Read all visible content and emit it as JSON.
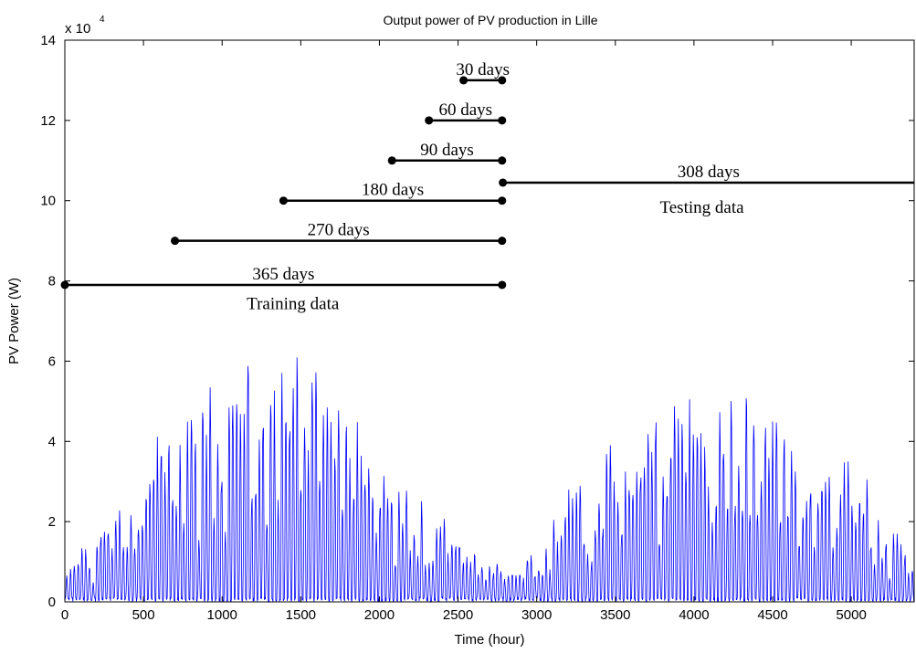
{
  "chart_data": {
    "type": "line",
    "title": "Output power of PV production in Lille",
    "xlabel": "Time (hour)",
    "ylabel": "PV Power (W)",
    "y_multiplier_label": "x 10",
    "y_multiplier_exponent": "4",
    "xlim": [
      0,
      5400
    ],
    "ylim": [
      0,
      140000
    ],
    "x_ticks": [
      0,
      500,
      1000,
      1500,
      2000,
      2500,
      3000,
      3500,
      4000,
      4500,
      5000
    ],
    "y_ticks": [
      0,
      2,
      4,
      6,
      8,
      10,
      12,
      14
    ],
    "y_tick_scale": 10000,
    "grid": false,
    "series_color": "#0000ff",
    "series": [
      {
        "envelope_peak_hours": [
          0,
          250,
          500,
          750,
          1000,
          1150,
          1250,
          1500,
          1750,
          2000,
          2250,
          2450,
          2650,
          2800,
          3000,
          3250,
          3500,
          3750,
          3950,
          4250,
          4500,
          4750,
          5000,
          5200,
          5400
        ],
        "envelope_peak_watts": [
          8000,
          22000,
          38000,
          52000,
          62000,
          68000,
          65000,
          66000,
          58000,
          47000,
          32000,
          20000,
          13000,
          10000,
          16000,
          32000,
          46000,
          56000,
          63000,
          60000,
          55000,
          46000,
          37000,
          25000,
          15000
        ]
      }
    ],
    "intervals": [
      {
        "label": "30 days",
        "start": 2535,
        "end": 2780,
        "y": 130000
      },
      {
        "label": "60 days",
        "start": 2315,
        "end": 2780,
        "y": 120000
      },
      {
        "label": "90 days",
        "start": 2080,
        "end": 2780,
        "y": 110000
      },
      {
        "label": "180 days",
        "start": 1390,
        "end": 2780,
        "y": 100000
      },
      {
        "label": "270 days",
        "start": 700,
        "end": 2780,
        "y": 90000
      },
      {
        "label": "365 days",
        "start": 0,
        "end": 2780,
        "y": 79000
      },
      {
        "label": "308 days",
        "start": 2785,
        "end": 5400,
        "y": 104500
      }
    ],
    "annotations": [
      {
        "text": "Training data",
        "x": 1450,
        "y": 73000
      },
      {
        "text": "Testing data",
        "x": 4050,
        "y": 97000
      }
    ]
  }
}
